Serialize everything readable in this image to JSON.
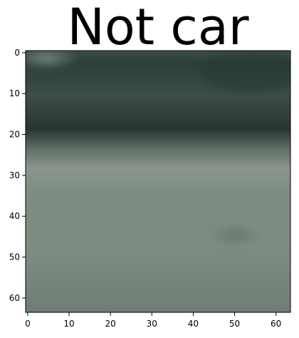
{
  "figure": {
    "title": "Not car"
  },
  "axes": {
    "x_ticks": [
      "0",
      "10",
      "20",
      "30",
      "40",
      "50",
      "60"
    ],
    "y_ticks": [
      "0",
      "10",
      "20",
      "30",
      "40",
      "50",
      "60"
    ],
    "xlim": [
      -0.5,
      63.5
    ],
    "ylim": [
      63.5,
      -0.5
    ]
  },
  "image": {
    "pixel_grid": [
      64,
      64
    ],
    "colors": {
      "dark_foliage": "#2e3f3a",
      "mid_foliage": "#3c4d47",
      "dark_band": "#2a3430",
      "transition": "#5b6a63",
      "light_road": "#8a968c",
      "road": "#7f8c82",
      "road_lower": "#6f7d74",
      "highlight": "#8e9c97",
      "dark_patch": "#58695a"
    }
  }
}
